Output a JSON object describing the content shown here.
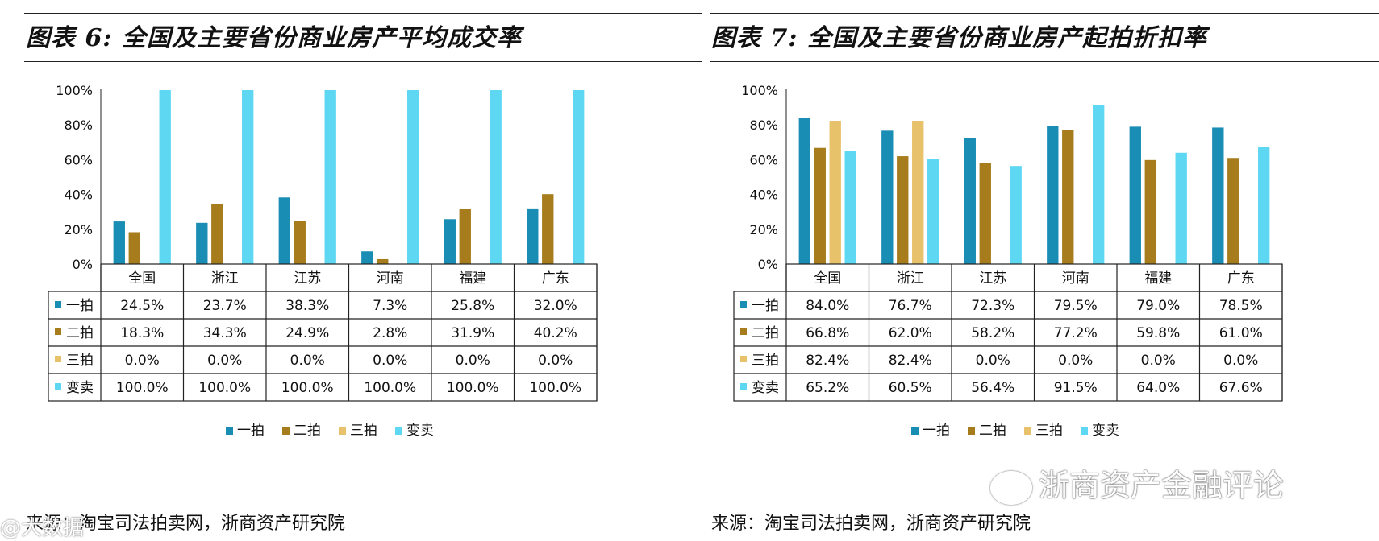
{
  "chart_data": [
    {
      "type": "bar",
      "title": "图表 6: 全国及主要省份商业房产平均成交率",
      "source": "来源：淘宝司法拍卖网，浙商资产研究院",
      "categories": [
        "全国",
        "浙江",
        "江苏",
        "河南",
        "福建",
        "广东"
      ],
      "ylim": [
        0,
        100
      ],
      "yticks": [
        "0%",
        "20%",
        "40%",
        "60%",
        "80%",
        "100%"
      ],
      "series": [
        {
          "name": "一拍",
          "color": "#1a8db5",
          "values": [
            24.5,
            23.7,
            38.3,
            7.3,
            25.8,
            32.0
          ],
          "labels": [
            "24.5%",
            "23.7%",
            "38.3%",
            "7.3%",
            "25.8%",
            "32.0%"
          ]
        },
        {
          "name": "二拍",
          "color": "#a67c1c",
          "values": [
            18.3,
            34.3,
            24.9,
            2.8,
            31.9,
            40.2
          ],
          "labels": [
            "18.3%",
            "34.3%",
            "24.9%",
            "2.8%",
            "31.9%",
            "40.2%"
          ]
        },
        {
          "name": "三拍",
          "color": "#e8c26a",
          "values": [
            0.0,
            0.0,
            0.0,
            0.0,
            0.0,
            0.0
          ],
          "labels": [
            "0.0%",
            "0.0%",
            "0.0%",
            "0.0%",
            "0.0%",
            "0.0%"
          ]
        },
        {
          "name": "变卖",
          "color": "#5ed8f2",
          "values": [
            100.0,
            100.0,
            100.0,
            100.0,
            100.0,
            100.0
          ],
          "labels": [
            "100.0%",
            "100.0%",
            "100.0%",
            "100.0%",
            "100.0%",
            "100.0%"
          ]
        }
      ],
      "legend": "bottom"
    },
    {
      "type": "bar",
      "title": "图表 7: 全国及主要省份商业房产起拍折扣率",
      "source": "来源：淘宝司法拍卖网，浙商资产研究院",
      "categories": [
        "全国",
        "浙江",
        "江苏",
        "河南",
        "福建",
        "广东"
      ],
      "ylim": [
        0,
        100
      ],
      "yticks": [
        "0%",
        "20%",
        "40%",
        "60%",
        "80%",
        "100%"
      ],
      "series": [
        {
          "name": "一拍",
          "color": "#1a8db5",
          "values": [
            84.0,
            76.7,
            72.3,
            79.5,
            79.0,
            78.5
          ],
          "labels": [
            "84.0%",
            "76.7%",
            "72.3%",
            "79.5%",
            "79.0%",
            "78.5%"
          ]
        },
        {
          "name": "二拍",
          "color": "#a67c1c",
          "values": [
            66.8,
            62.0,
            58.2,
            77.2,
            59.8,
            61.0
          ],
          "labels": [
            "66.8%",
            "62.0%",
            "58.2%",
            "77.2%",
            "59.8%",
            "61.0%"
          ]
        },
        {
          "name": "三拍",
          "color": "#e8c26a",
          "values": [
            82.4,
            82.4,
            0.0,
            0.0,
            0.0,
            0.0
          ],
          "labels": [
            "82.4%",
            "82.4%",
            "0.0%",
            "0.0%",
            "0.0%",
            "0.0%"
          ]
        },
        {
          "name": "变卖",
          "color": "#5ed8f2",
          "values": [
            65.2,
            60.5,
            56.4,
            91.5,
            64.0,
            67.6
          ],
          "labels": [
            "65.2%",
            "60.5%",
            "56.4%",
            "91.5%",
            "64.0%",
            "67.6%"
          ]
        }
      ],
      "legend": "bottom"
    }
  ],
  "watermark": {
    "text": "浙商资产金融评论",
    "left_text": "@大数据"
  }
}
